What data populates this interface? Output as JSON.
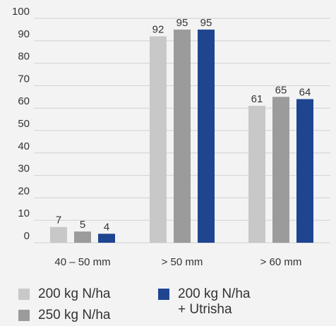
{
  "chart_data": {
    "type": "bar",
    "title": "",
    "xlabel": "",
    "ylabel": "",
    "ylim": [
      0,
      100
    ],
    "yticks": [
      0,
      10,
      20,
      30,
      40,
      50,
      60,
      70,
      80,
      90,
      100
    ],
    "grid": true,
    "legend_position": "bottom",
    "categories": [
      "40 – 50 mm",
      "> 50 mm",
      "> 60 mm"
    ],
    "series": [
      {
        "name": "200 kg N/ha",
        "color": "#c8c8c8",
        "values": [
          7,
          92,
          61
        ]
      },
      {
        "name": "250 kg N/ha",
        "color": "#9b9b9b",
        "values": [
          5,
          95,
          65
        ]
      },
      {
        "name_lines": [
          "200 kg N/ha",
          "+ Utrisha"
        ],
        "color": "#1f4591",
        "values": [
          4,
          95,
          64
        ]
      }
    ]
  },
  "colors": {
    "background": "#f3f3f3",
    "gridline": "#d2d2d2",
    "axis_text": "#333333"
  }
}
